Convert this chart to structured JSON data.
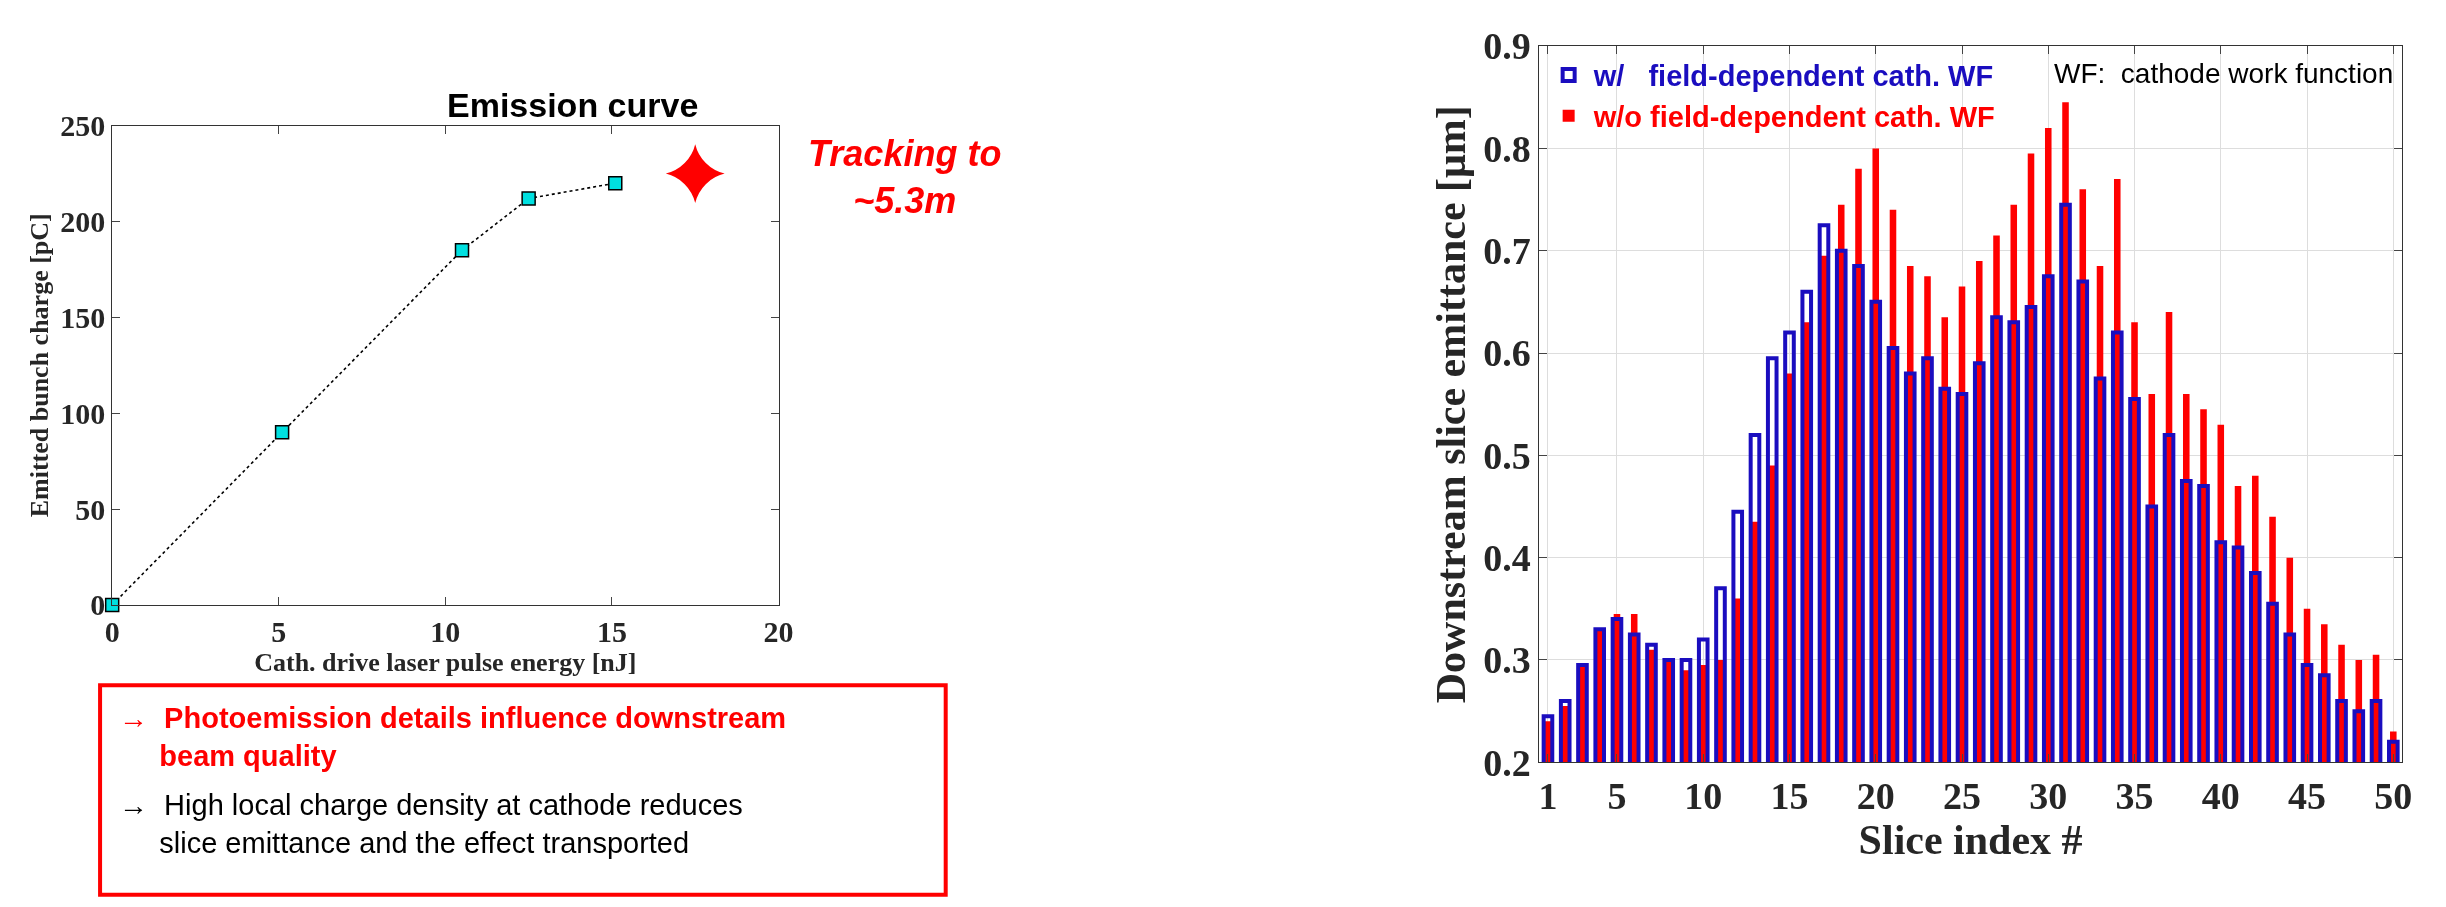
{
  "chart_data": [
    {
      "type": "line",
      "title": "Emission curve",
      "xlabel": "Cath. drive laser pulse energy [nJ]",
      "ylabel": "Emitted bunch charge [pC]",
      "xlim": [
        0,
        20
      ],
      "xticks": [
        0,
        5,
        10,
        15,
        20
      ],
      "ylim": [
        0,
        250
      ],
      "yticks": [
        0,
        50,
        100,
        150,
        200,
        250
      ],
      "grid": false,
      "legend": false,
      "series": [
        {
          "type": "line",
          "color": "#00e0e0",
          "marker": "square",
          "line_style": "dotted",
          "x": [
            0,
            5.1,
            10.5,
            12.5,
            15.1
          ],
          "values": [
            0,
            90,
            185,
            212,
            220
          ]
        },
        {
          "type": "scatter",
          "color": "#ff0000",
          "marker": "star",
          "x": [
            17.5
          ],
          "values": [
            225
          ]
        }
      ],
      "annotations": [
        "Tracking to\n~5.3m",
        "→  Photoemission details influence downstream\n     beam quality",
        "→  High local charge density at cathode reduces\n     slice emittance and the effect transported"
      ]
    },
    {
      "type": "bar",
      "xlabel": "Slice index #",
      "ylabel": "Downstream slice emittance [μm]",
      "xlim": [
        0.5,
        50.5
      ],
      "xticks": [
        1,
        5,
        10,
        15,
        20,
        25,
        30,
        35,
        40,
        45,
        50
      ],
      "ylim": [
        0.2,
        0.9
      ],
      "yticks": [
        0.2,
        0.3,
        0.4,
        0.5,
        0.6,
        0.7,
        0.8,
        0.9
      ],
      "grid": true,
      "legend": "top left",
      "x": [
        1,
        2,
        3,
        4,
        5,
        6,
        7,
        8,
        9,
        10,
        11,
        12,
        13,
        14,
        15,
        16,
        17,
        18,
        19,
        20,
        21,
        22,
        23,
        24,
        25,
        26,
        27,
        28,
        29,
        30,
        31,
        32,
        33,
        34,
        35,
        36,
        37,
        38,
        39,
        40,
        41,
        42,
        43,
        44,
        45,
        46,
        47,
        48,
        49,
        50
      ],
      "series": [
        {
          "name": "w/o field-dependent cath. WF",
          "color": "#ff0000",
          "values": [
            0.24,
            0.255,
            0.295,
            0.33,
            0.345,
            0.345,
            0.31,
            0.3,
            0.29,
            0.295,
            0.3,
            0.36,
            0.435,
            0.49,
            0.58,
            0.63,
            0.695,
            0.745,
            0.78,
            0.8,
            0.74,
            0.685,
            0.675,
            0.635,
            0.665,
            0.69,
            0.715,
            0.745,
            0.795,
            0.82,
            0.845,
            0.76,
            0.685,
            0.77,
            0.63,
            0.56,
            0.64,
            0.56,
            0.545,
            0.53,
            0.47,
            0.48,
            0.44,
            0.4,
            0.35,
            0.335,
            0.315,
            0.3,
            0.305,
            0.23
          ]
        },
        {
          "name": "w/   field-dependent cath. WF",
          "color": "#1a0dbf",
          "values": [
            0.245,
            0.26,
            0.295,
            0.33,
            0.34,
            0.325,
            0.315,
            0.3,
            0.3,
            0.32,
            0.37,
            0.445,
            0.52,
            0.595,
            0.62,
            0.66,
            0.725,
            0.7,
            0.685,
            0.65,
            0.605,
            0.58,
            0.595,
            0.565,
            0.56,
            0.59,
            0.635,
            0.63,
            0.645,
            0.675,
            0.745,
            0.67,
            0.575,
            0.62,
            0.555,
            0.45,
            0.52,
            0.475,
            0.47,
            0.415,
            0.41,
            0.385,
            0.355,
            0.325,
            0.295,
            0.285,
            0.26,
            0.25,
            0.26,
            0.22
          ]
        }
      ],
      "annotations": [
        "WF:  cathode work function"
      ]
    }
  ]
}
